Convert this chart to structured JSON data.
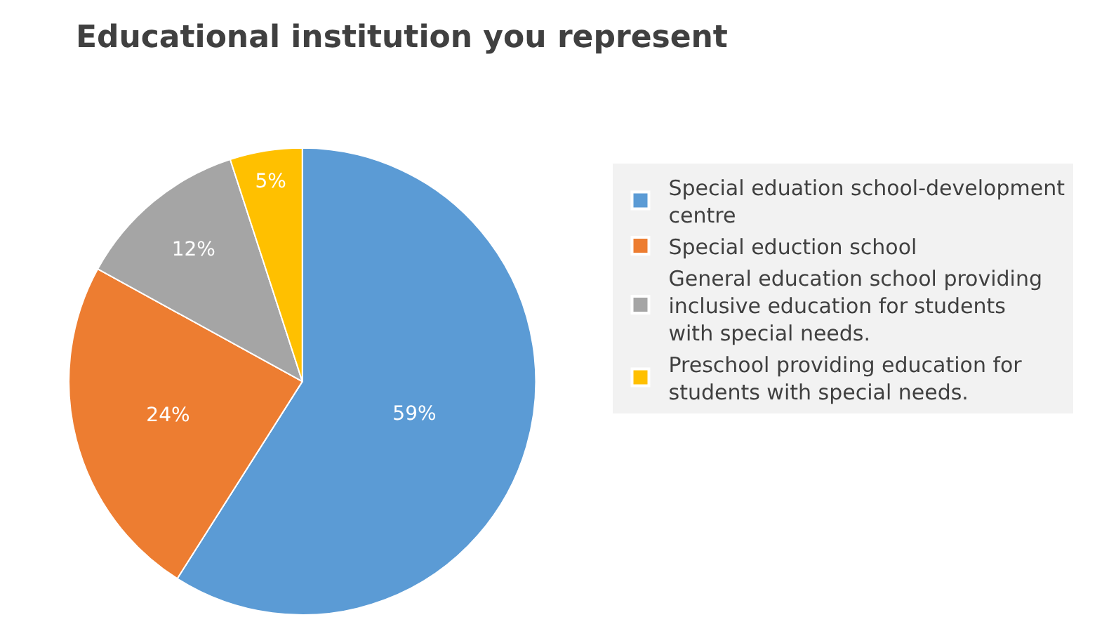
{
  "chart_data": {
    "type": "pie",
    "title": "Educational institution you represent",
    "categories": [
      "Special eduation school-development centre",
      "Special eduction school",
      "General education school providing inclusive education for students with special needs.",
      "Preschool providing education for students with special needs."
    ],
    "values": [
      59,
      24,
      12,
      5
    ],
    "value_labels": [
      "59%",
      "24%",
      "12%",
      "5%"
    ],
    "colors": [
      "#5b9bd5",
      "#ed7d31",
      "#a5a5a5",
      "#ffc000"
    ],
    "legend": "right"
  }
}
